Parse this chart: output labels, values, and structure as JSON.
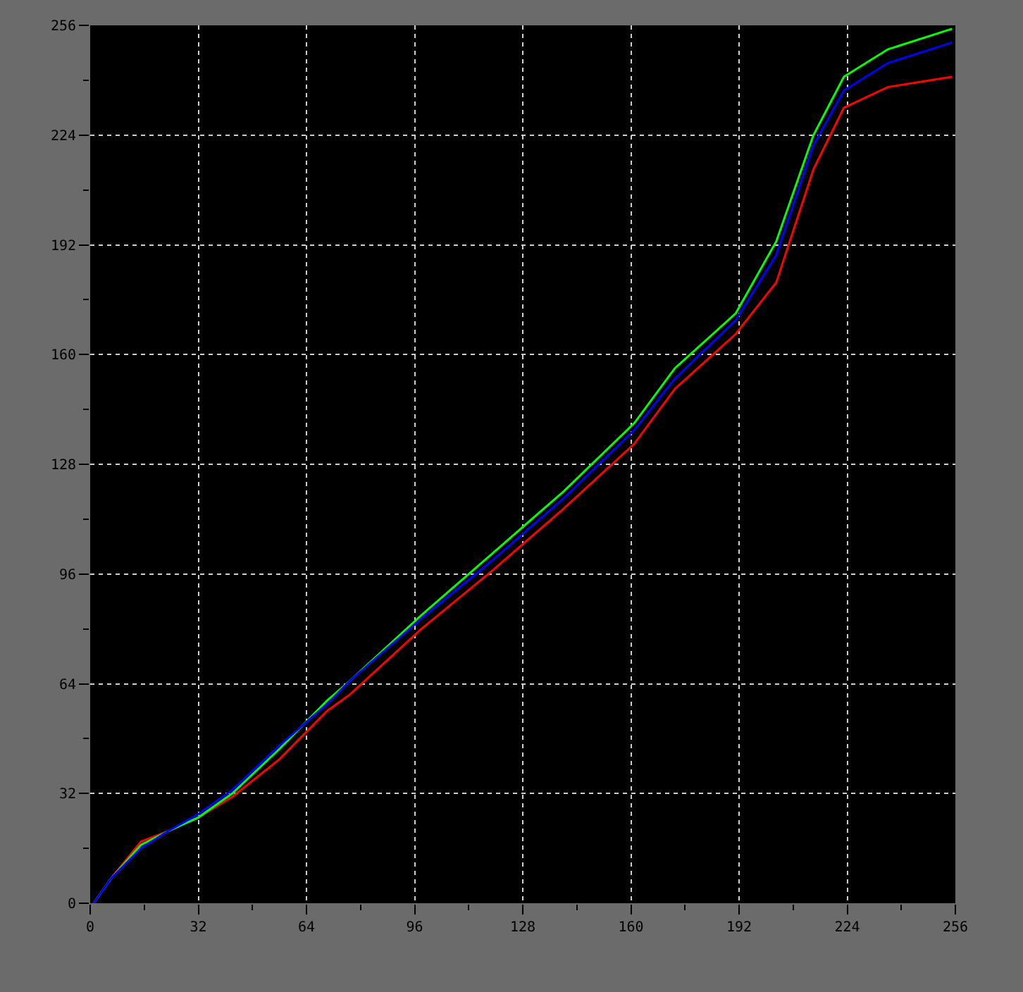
{
  "chart_data": {
    "type": "line",
    "x": [
      1,
      6,
      15,
      23,
      32,
      42,
      56,
      70,
      77,
      98,
      119,
      140,
      161,
      173,
      191,
      203,
      214,
      223,
      236,
      255
    ],
    "series": [
      {
        "color": "#ff0000",
        "values": [
          0,
          7,
          18,
          21,
          25,
          31,
          42,
          56,
          61,
          80,
          97,
          115,
          134,
          150,
          166,
          181,
          214,
          232,
          238,
          241
        ]
      },
      {
        "color": "#00ff00",
        "values": [
          0,
          7,
          17,
          21,
          25,
          32,
          45,
          59,
          65,
          84,
          102,
          120,
          140,
          156,
          172,
          193,
          224,
          241,
          249,
          255
        ]
      },
      {
        "color": "#0000ff",
        "values": [
          0,
          7,
          16,
          21,
          26,
          33,
          46,
          58,
          65,
          83,
          100,
          118,
          138,
          153,
          170,
          189,
          221,
          237,
          245,
          251
        ]
      }
    ],
    "xlim": [
      0,
      256
    ],
    "ylim": [
      0,
      256
    ],
    "xticks": [
      0,
      32,
      64,
      96,
      128,
      160,
      192,
      224,
      256
    ],
    "yticks": [
      0,
      32,
      64,
      96,
      128,
      160,
      192,
      224,
      256
    ],
    "grid": true,
    "marker": "none",
    "line_style": "solid"
  }
}
